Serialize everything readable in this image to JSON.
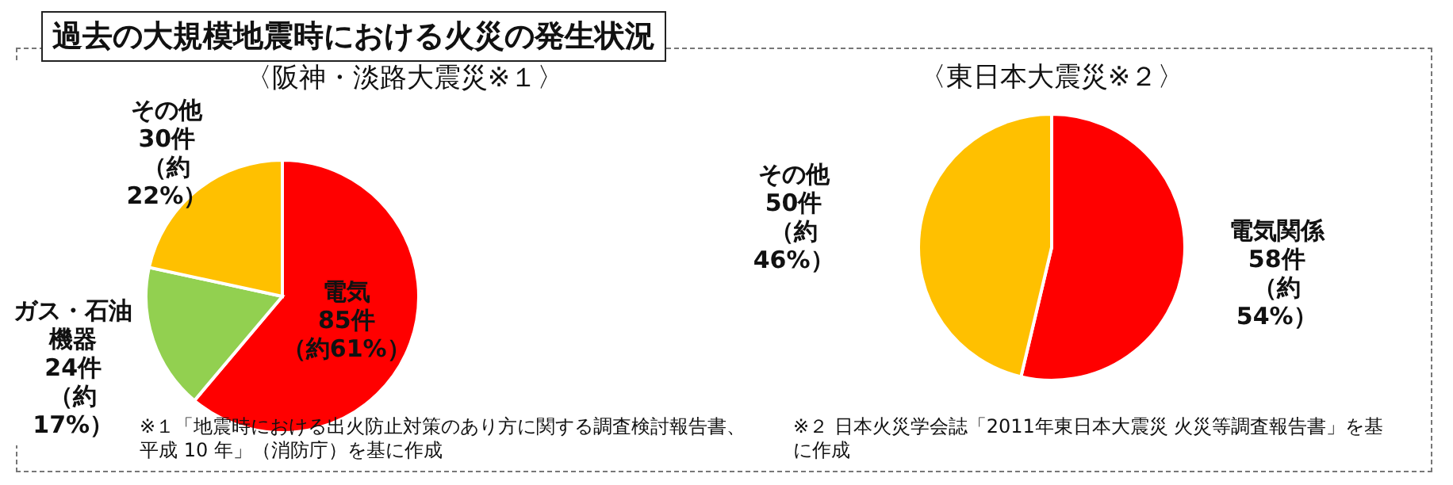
{
  "chart_data": [
    {
      "type": "pie",
      "title": "過去の大規模地震時における火災の発生状況",
      "subtitle": "〈阪神・淡路大震災※１〉",
      "categories": [
        "電気",
        "ガス・石油機器",
        "その他"
      ],
      "values": [
        85,
        24,
        30
      ],
      "colors": [
        "#ff0000",
        "#92d050",
        "#ffc000"
      ],
      "value_labels": [
        "85件（約61%）",
        "24件（約17%）",
        "30件（約22%）"
      ],
      "annotations": [
        "※１「地震時における出火防止対策のあり方に関する調査検討報告書、平成 10 年」（消防庁）を基に作成"
      ]
    },
    {
      "type": "pie",
      "subtitle": "〈東日本大震災※２〉",
      "categories": [
        "電気関係",
        "その他"
      ],
      "values": [
        58,
        50
      ],
      "colors": [
        "#ff0000",
        "#ffc000"
      ],
      "value_labels": [
        "58件（約54%）",
        "50件（約46%）"
      ],
      "annotations": [
        "※２ 日本火災学会誌「2011年東日本大震災 火災等調査報告書」を基に作成"
      ]
    }
  ]
}
